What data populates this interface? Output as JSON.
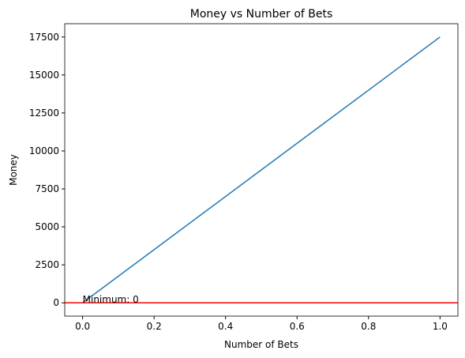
{
  "chart_data": {
    "type": "line",
    "title": "Money vs Number of Bets",
    "x_label": "Number of Bets",
    "y_label": "Money",
    "x": [
      0,
      1
    ],
    "series": [
      {
        "name": "Money",
        "color": "#1f77b4",
        "values": [
          0,
          17500
        ]
      }
    ],
    "xlim": [
      -0.05,
      1.05
    ],
    "xticks": [
      {
        "value": 0,
        "label": "0.0"
      },
      {
        "value": 0.2,
        "label": "0.2"
      },
      {
        "value": 0.4,
        "label": "0.4"
      },
      {
        "value": 0.6,
        "label": "0.6"
      },
      {
        "value": 0.8,
        "label": "0.8"
      },
      {
        "value": 1,
        "label": "1.0"
      }
    ],
    "ylim": [
      -875,
      18375
    ],
    "yticks": [
      0,
      2500,
      5000,
      7500,
      10000,
      12500,
      15000,
      17500
    ],
    "hline": {
      "value": 0,
      "color": "#ff0000"
    },
    "annotation": {
      "text": "Minimum: 0",
      "x": 0,
      "y": 0
    }
  }
}
